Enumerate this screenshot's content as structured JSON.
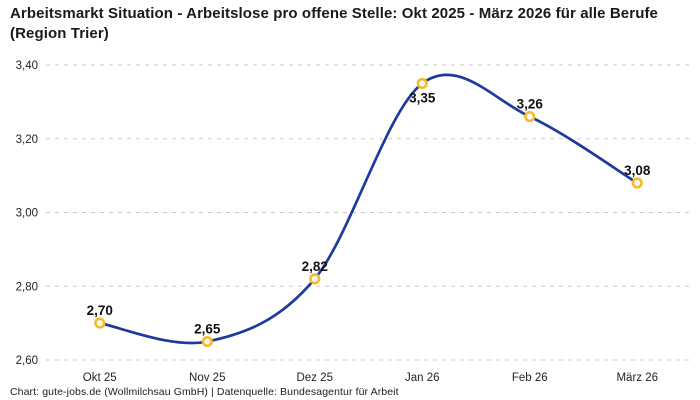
{
  "header": {
    "title": "Arbeitsmarkt Situation - Arbeitslose pro offene Stelle: Okt 2025 - März 2026 für alle Berufe (Region Trier)"
  },
  "footer": {
    "attribution": "Chart: gute-jobs.de (Wollmilchsau GmbH) | Datenquelle: Bundesagentur für Arbeit"
  },
  "chart_data": {
    "type": "line",
    "title": "Arbeitsmarkt Situation - Arbeitslose pro offene Stelle: Okt 2025 - März 2026 für alle Berufe (Region Trier)",
    "categories": [
      "Okt 25",
      "Nov 25",
      "Dez 25",
      "Jan 26",
      "Feb 26",
      "März 26"
    ],
    "values": [
      2.7,
      2.65,
      2.82,
      3.35,
      3.26,
      3.08
    ],
    "value_labels": [
      "2,70",
      "2,65",
      "2,82",
      "3,35",
      "3,26",
      "3,08"
    ],
    "label_positions": [
      "above",
      "above",
      "above",
      "below",
      "above",
      "above"
    ],
    "xlabel": "",
    "ylabel": "",
    "ylim": [
      2.6,
      3.4
    ],
    "y_ticks": [
      2.6,
      2.8,
      3.0,
      3.2,
      3.4
    ],
    "y_tick_labels": [
      "2,60",
      "2,80",
      "3,00",
      "3,20",
      "3,40"
    ],
    "grid": "horizontal-dashed",
    "legend": "none",
    "curve": "smooth-spline",
    "line_color": "#1e3a9c",
    "marker_ring_color": "#f5bb2d",
    "marker_fill_color": "#ffffff",
    "grid_color": "#c9c9c9",
    "label_color": "#111111",
    "tick_color": "#242424"
  }
}
